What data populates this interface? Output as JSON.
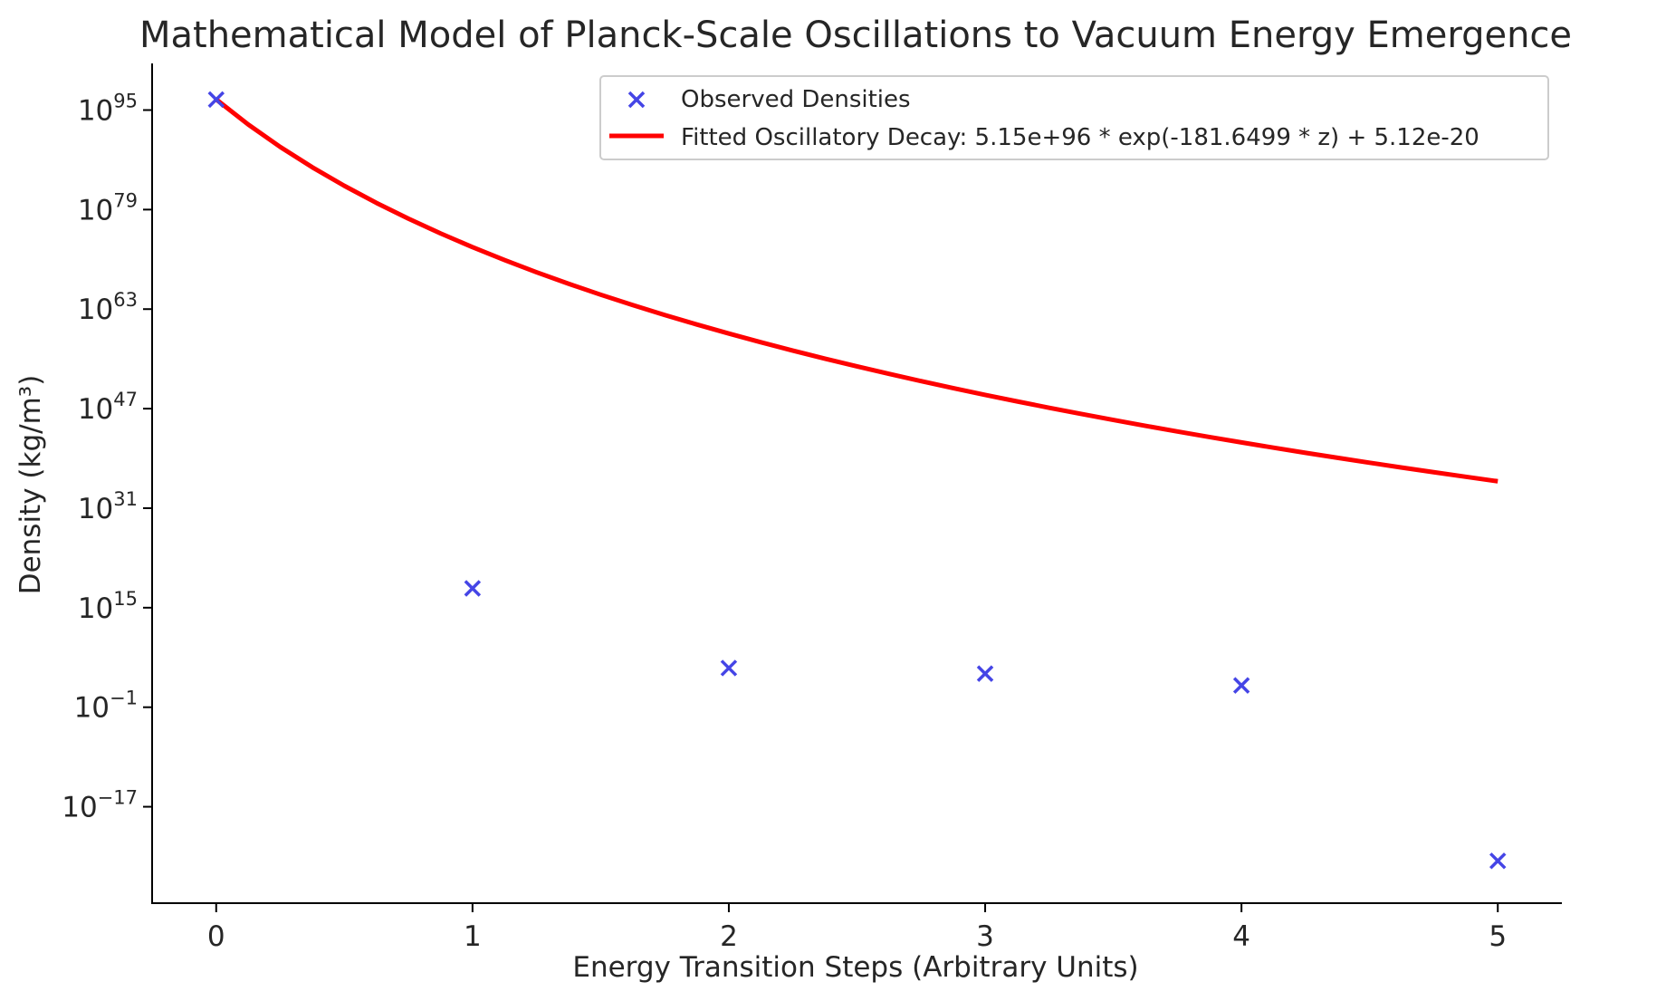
{
  "chart_data": {
    "type": "scatter",
    "title": "Mathematical Model of Planck-Scale Oscillations to Vacuum Energy Emergence",
    "xlabel": "Energy Transition Steps (Arbitrary Units)",
    "ylabel": "Density (kg/m³)",
    "x_ticks": [
      0,
      1,
      2,
      3,
      4,
      5
    ],
    "y_scale": "log",
    "y_tick_exponents": [
      95,
      79,
      63,
      47,
      31,
      15,
      -1,
      -17
    ],
    "xlim": [
      -0.25,
      5.25
    ],
    "ylim_log10": [
      -32.5,
      102.5
    ],
    "grid": false,
    "legend_position": "top-right",
    "series": [
      {
        "name": "Observed Densities",
        "kind": "scatter",
        "marker": "x",
        "color": "#4545e6",
        "x": [
          0,
          1,
          2,
          3,
          4,
          5
        ],
        "y_log10": [
          96.7,
          18.1,
          5.3,
          4.4,
          2.5,
          -25.7
        ]
      },
      {
        "name": "Fitted Oscillatory Decay: 5.15e+96 * exp(-181.6499 * z) + 5.12e-20",
        "kind": "line",
        "color": "#ff0000",
        "fit": {
          "amplitude": 5.15e+96,
          "rate": 181.6499,
          "offset": 5.12e-20,
          "z_from_x": "log10(1+x)"
        },
        "x_range": [
          0,
          5
        ]
      }
    ]
  }
}
